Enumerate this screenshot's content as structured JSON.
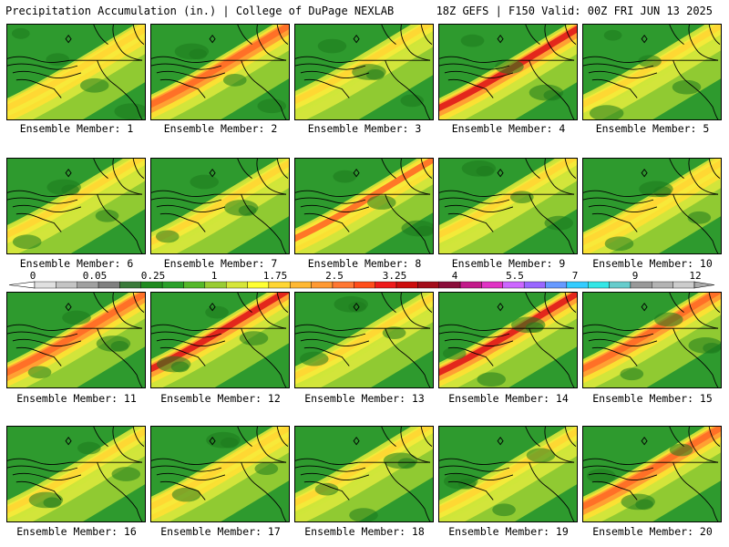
{
  "header": {
    "left": "Precipitation Accumulation (in.) | College of DuPage NEXLAB",
    "right": "18Z GEFS | F150 Valid: 00Z FRI JUN 13 2025"
  },
  "legend": {
    "tick_labels": [
      "0",
      "0.05",
      "0.25",
      "1",
      "1.75",
      "2.5",
      "3.25",
      "4",
      "5.5",
      "7",
      "9",
      "12"
    ],
    "colors": [
      "#e0e0e0",
      "#c4c4c4",
      "#a0a0a0",
      "#808080",
      "#3a7a3a",
      "#1e8a1e",
      "#2aa02a",
      "#55b82a",
      "#99cc33",
      "#d6e63a",
      "#ffff33",
      "#ffd633",
      "#ffb833",
      "#ff9933",
      "#ff7733",
      "#ff4d1a",
      "#ee1a1a",
      "#cc0d0d",
      "#a30d1a",
      "#8a0d3a",
      "#c21a8a",
      "#e033c4",
      "#cc66ff",
      "#9966ff",
      "#6699ff",
      "#33ccff",
      "#33e6e6",
      "#66cccc",
      "#999999",
      "#b3b3b3",
      "#cccccc"
    ]
  },
  "members": [
    {
      "label": "Ensemble Member: 1"
    },
    {
      "label": "Ensemble Member: 2"
    },
    {
      "label": "Ensemble Member: 3"
    },
    {
      "label": "Ensemble Member: 4"
    },
    {
      "label": "Ensemble Member: 5"
    },
    {
      "label": "Ensemble Member: 6"
    },
    {
      "label": "Ensemble Member: 7"
    },
    {
      "label": "Ensemble Member: 8"
    },
    {
      "label": "Ensemble Member: 9"
    },
    {
      "label": "Ensemble Member: 10"
    },
    {
      "label": "Ensemble Member: 11"
    },
    {
      "label": "Ensemble Member: 12"
    },
    {
      "label": "Ensemble Member: 13"
    },
    {
      "label": "Ensemble Member: 14"
    },
    {
      "label": "Ensemble Member: 15"
    },
    {
      "label": "Ensemble Member: 16"
    },
    {
      "label": "Ensemble Member: 17"
    },
    {
      "label": "Ensemble Member: 18"
    },
    {
      "label": "Ensemble Member: 19"
    },
    {
      "label": "Ensemble Member: 20"
    }
  ]
}
